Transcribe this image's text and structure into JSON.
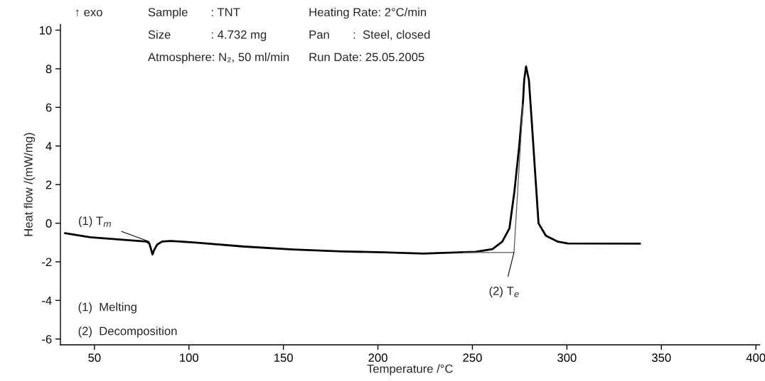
{
  "chart_data": {
    "type": "line",
    "xlabel": "Temperature /°C",
    "ylabel": "Heat flow /(mW/mg)",
    "xlim": [
      32,
      402
    ],
    "ylim": [
      -6.3,
      10.3
    ],
    "xticks": [
      50,
      100,
      150,
      200,
      250,
      300,
      350,
      400
    ],
    "yticks": [
      -6,
      -4,
      -2,
      0,
      2,
      4,
      6,
      8,
      10
    ],
    "grid": false,
    "legend": false,
    "marker": "none",
    "line_style": "solid",
    "series": [
      {
        "color": "#000000",
        "x": [
          34.4,
          47.7,
          68.4,
          77.4,
          79,
          79.8,
          80.7,
          81.7,
          83.2,
          85.8,
          90.4,
          103.4,
          129.2,
          155.1,
          181,
          202.8,
          224,
          251.7,
          260.6,
          265.8,
          269.6,
          272.2,
          274.8,
          276.7,
          277.4,
          278.4,
          279.9,
          281.4,
          283.1,
          285,
          288.9,
          295.3,
          300.5,
          338.7
        ],
        "values": [
          -0.52,
          -0.73,
          -0.88,
          -0.95,
          -1.04,
          -1.3,
          -1.62,
          -1.37,
          -1.11,
          -0.95,
          -0.92,
          -1.0,
          -1.21,
          -1.36,
          -1.46,
          -1.51,
          -1.57,
          -1.48,
          -1.34,
          -0.96,
          -0.27,
          1.62,
          4.02,
          6.16,
          7.42,
          8.12,
          7.42,
          5.28,
          2.76,
          -0.01,
          -0.65,
          -0.96,
          -1.05,
          -1.06
        ]
      },
      {
        "color": "#555555",
        "type": "line",
        "x": [
          245,
          272,
          276.7
        ],
        "values": [
          -1.52,
          -1.52,
          6.16
        ]
      }
    ],
    "annotations": [
      "↑ exo",
      "Sample",
      ": TNT",
      "Heating Rate: 2°C/min",
      "Size",
      ": 4.732 mg",
      "Pan",
      ":  Steel, closed",
      "Atmosphere: N₂, 50 ml/min",
      "Run Date: 25.05.2005",
      "(1)  Melting",
      "(2)  Decomposition",
      {
        "text": "(1) T$_{m}$",
        "x": 79,
        "y": -0.95
      },
      {
        "text": "(2) T$_{e}$",
        "x": 272,
        "y": -1.52
      }
    ]
  }
}
